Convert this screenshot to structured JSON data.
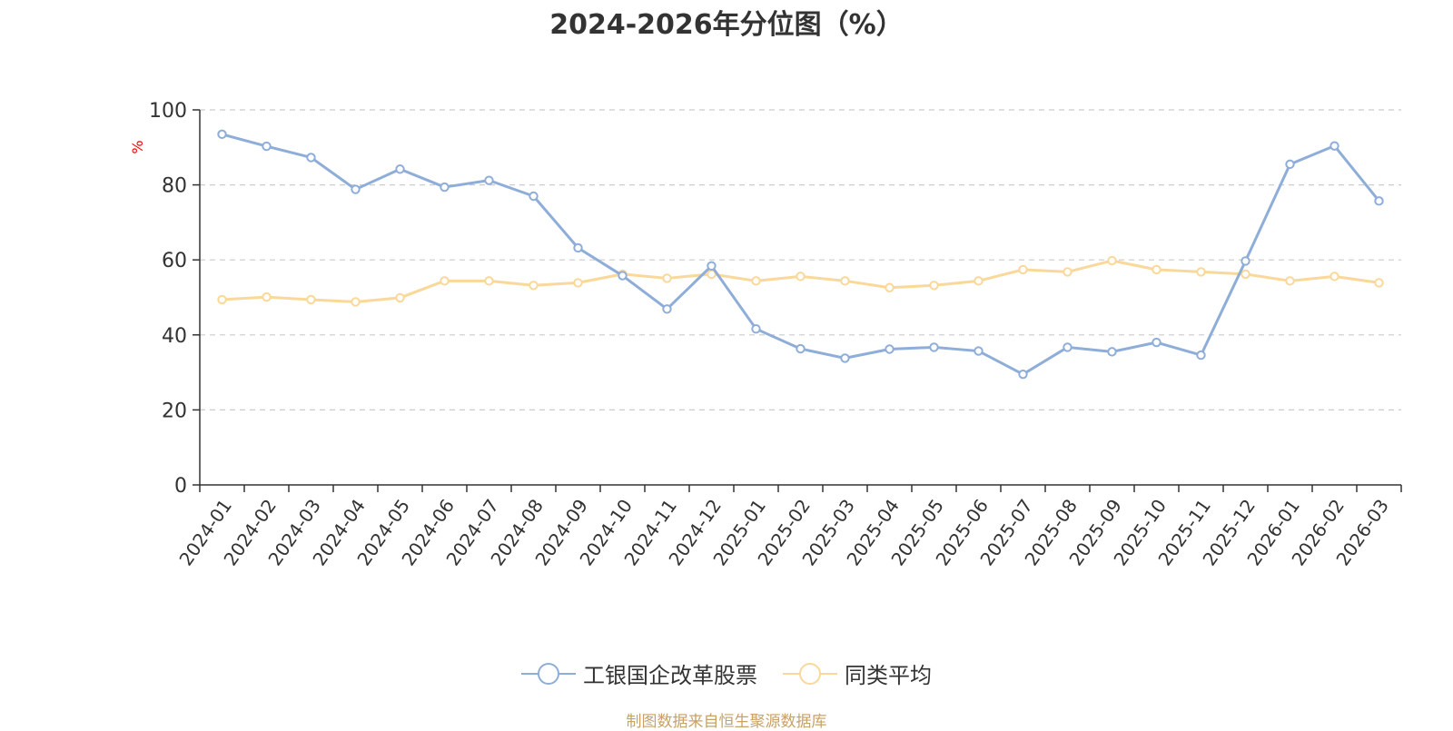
{
  "title": "2024-2026年分位图（%）",
  "footer": "制图数据来自恒生聚源数据库",
  "chart_data": {
    "type": "line",
    "title": "2024-2026年分位图（%）",
    "ylabel": "%",
    "ylim": [
      0,
      100
    ],
    "yticks": [
      0,
      20,
      40,
      60,
      80,
      100
    ],
    "grid": true,
    "legend_position": "bottom-center",
    "categories": [
      "2024-01",
      "2024-02",
      "2024-03",
      "2024-04",
      "2024-05",
      "2024-06",
      "2024-07",
      "2024-08",
      "2024-09",
      "2024-10",
      "2024-11",
      "2024-12",
      "2025-01",
      "2025-02",
      "2025-03",
      "2025-04",
      "2025-05",
      "2025-06",
      "2025-07",
      "2025-08",
      "2025-09",
      "2025-10",
      "2025-11",
      "2025-12",
      "2026-01",
      "2026-02",
      "2026-03"
    ],
    "series": [
      {
        "name": "工银国企改革股票",
        "color": "#8eadd9",
        "values": [
          93.5,
          90.3,
          87.3,
          78.8,
          84.2,
          79.4,
          81.2,
          77.0,
          63.2,
          55.8,
          46.9,
          58.4,
          41.6,
          36.3,
          33.8,
          36.2,
          36.7,
          35.7,
          29.5,
          36.7,
          35.5,
          38.0,
          34.6,
          59.7,
          85.5,
          90.4,
          75.7
        ]
      },
      {
        "name": "同类平均",
        "color": "#fad89a",
        "values": [
          49.4,
          50.1,
          49.4,
          48.8,
          49.9,
          54.4,
          54.4,
          53.2,
          53.9,
          56.2,
          55.1,
          56.2,
          54.4,
          55.6,
          54.4,
          52.6,
          53.2,
          54.4,
          57.4,
          56.8,
          59.8,
          57.4,
          56.8,
          56.2,
          54.4,
          55.6,
          53.9
        ]
      }
    ]
  }
}
